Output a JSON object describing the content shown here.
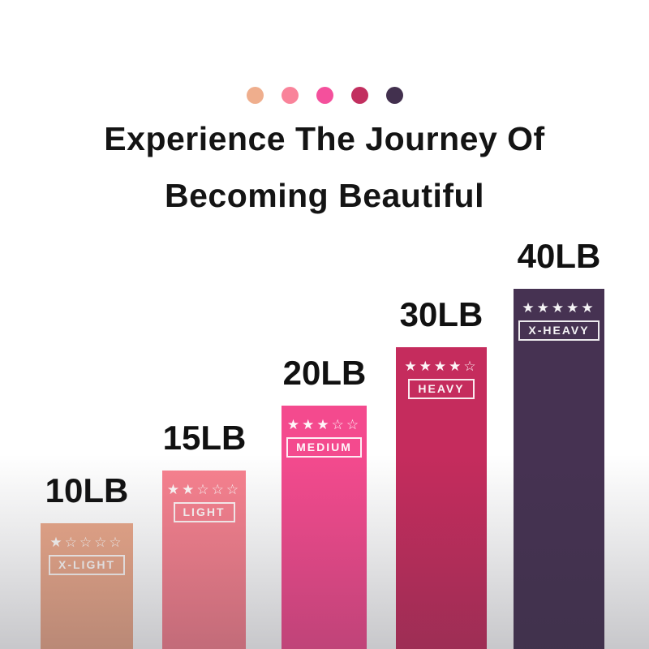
{
  "title": {
    "line1": "Experience The Journey Of",
    "line2": "Becoming Beautiful"
  },
  "palette": {
    "dots": [
      {
        "name": "x-light-dot",
        "color": "#EFAE8D"
      },
      {
        "name": "light-dot",
        "color": "#F9839A"
      },
      {
        "name": "medium-dot",
        "color": "#F4509C"
      },
      {
        "name": "heavy-dot",
        "color": "#C22F5F"
      },
      {
        "name": "x-heavy-dot",
        "color": "#42304E"
      }
    ]
  },
  "chart_data": {
    "type": "bar",
    "title": "Experience The Journey Of Becoming Beautiful",
    "categories": [
      "X-LIGHT",
      "LIGHT",
      "MEDIUM",
      "HEAVY",
      "X-HEAVY"
    ],
    "values": [
      10,
      15,
      20,
      30,
      40
    ],
    "unit": "LB",
    "value_labels": [
      "10LB",
      "15LB",
      "20LB",
      "30LB",
      "40LB"
    ],
    "star_ratings": [
      1,
      2,
      3,
      4,
      5
    ],
    "star_max": 5,
    "bar_colors": [
      "#ECA98B",
      "#F8818F",
      "#F44A8E",
      "#C52C5D",
      "#463252"
    ],
    "xlabel": "",
    "ylabel": "",
    "legend_position": "none",
    "axes": "hidden",
    "grid": false
  },
  "bars": [
    {
      "weight": "10LB",
      "label": "X-LIGHT",
      "stars_display": "★☆☆☆☆",
      "stars_filled": 1,
      "color": "#ECA98B"
    },
    {
      "weight": "15LB",
      "label": "LIGHT",
      "stars_display": "★★☆☆☆",
      "stars_filled": 2,
      "color": "#F8818F"
    },
    {
      "weight": "20LB",
      "label": "MEDIUM",
      "stars_display": "★★★☆☆",
      "stars_filled": 3,
      "color": "#F44A8E"
    },
    {
      "weight": "30LB",
      "label": "HEAVY",
      "stars_display": "★★★★☆",
      "stars_filled": 4,
      "color": "#C52C5D"
    },
    {
      "weight": "40LB",
      "label": "X-HEAVY",
      "stars_display": "★★★★★",
      "stars_filled": 5,
      "color": "#463252"
    }
  ]
}
